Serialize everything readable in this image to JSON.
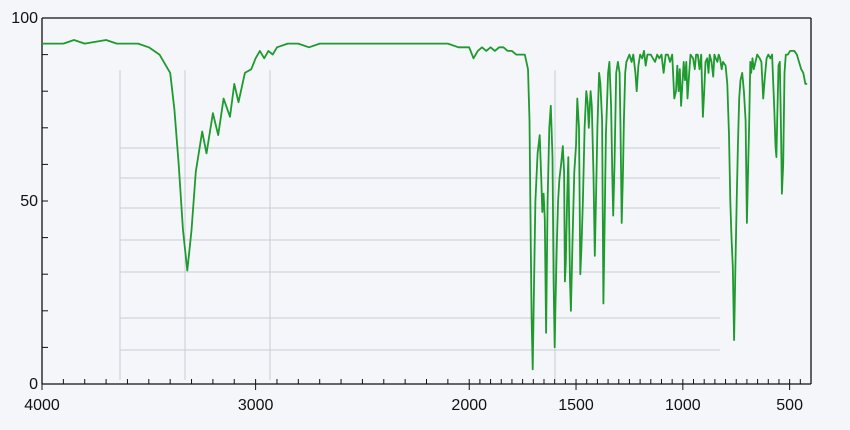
{
  "chart_data": {
    "type": "line",
    "title": "",
    "xlabel": "",
    "ylabel": "",
    "xlim": [
      4000,
      400
    ],
    "ylim": [
      0,
      100
    ],
    "x_reversed": true,
    "xticks": [
      4000,
      3000,
      2000,
      1500,
      1000,
      500
    ],
    "yticks": [
      0,
      50,
      100
    ],
    "grid": false,
    "series": [
      {
        "color": "#1e9a2e",
        "points": [
          [
            4000,
            93
          ],
          [
            3900,
            93
          ],
          [
            3850,
            94
          ],
          [
            3800,
            93
          ],
          [
            3700,
            94
          ],
          [
            3650,
            93
          ],
          [
            3550,
            93
          ],
          [
            3500,
            92
          ],
          [
            3450,
            90
          ],
          [
            3400,
            85
          ],
          [
            3380,
            75
          ],
          [
            3360,
            60
          ],
          [
            3340,
            42
          ],
          [
            3320,
            31
          ],
          [
            3300,
            42
          ],
          [
            3280,
            58
          ],
          [
            3250,
            69
          ],
          [
            3230,
            63
          ],
          [
            3200,
            74
          ],
          [
            3175,
            68
          ],
          [
            3150,
            78
          ],
          [
            3120,
            73
          ],
          [
            3100,
            82
          ],
          [
            3080,
            77
          ],
          [
            3050,
            85
          ],
          [
            3020,
            86
          ],
          [
            3000,
            89
          ],
          [
            2980,
            91
          ],
          [
            2960,
            89
          ],
          [
            2940,
            91
          ],
          [
            2920,
            90
          ],
          [
            2900,
            92
          ],
          [
            2850,
            93
          ],
          [
            2800,
            93
          ],
          [
            2750,
            92
          ],
          [
            2700,
            93
          ],
          [
            2600,
            93
          ],
          [
            2500,
            93
          ],
          [
            2400,
            93
          ],
          [
            2300,
            93
          ],
          [
            2200,
            93
          ],
          [
            2100,
            93
          ],
          [
            2050,
            92
          ],
          [
            2000,
            92
          ],
          [
            1980,
            89
          ],
          [
            1960,
            91
          ],
          [
            1940,
            92
          ],
          [
            1920,
            91
          ],
          [
            1900,
            92
          ],
          [
            1880,
            91
          ],
          [
            1860,
            92
          ],
          [
            1840,
            92
          ],
          [
            1820,
            91
          ],
          [
            1800,
            91
          ],
          [
            1780,
            90
          ],
          [
            1760,
            90
          ],
          [
            1740,
            90
          ],
          [
            1725,
            86
          ],
          [
            1718,
            72
          ],
          [
            1712,
            40
          ],
          [
            1708,
            18
          ],
          [
            1703,
            4
          ],
          [
            1697,
            25
          ],
          [
            1690,
            50
          ],
          [
            1680,
            63
          ],
          [
            1670,
            68
          ],
          [
            1662,
            55
          ],
          [
            1658,
            47
          ],
          [
            1652,
            52
          ],
          [
            1646,
            45
          ],
          [
            1640,
            14
          ],
          [
            1633,
            50
          ],
          [
            1625,
            70
          ],
          [
            1618,
            76
          ],
          [
            1610,
            62
          ],
          [
            1605,
            28
          ],
          [
            1600,
            10
          ],
          [
            1596,
            22
          ],
          [
            1590,
            38
          ],
          [
            1584,
            50
          ],
          [
            1578,
            56
          ],
          [
            1570,
            60
          ],
          [
            1562,
            65
          ],
          [
            1556,
            58
          ],
          [
            1552,
            28
          ],
          [
            1548,
            33
          ],
          [
            1542,
            50
          ],
          [
            1536,
            62
          ],
          [
            1528,
            28
          ],
          [
            1524,
            20
          ],
          [
            1516,
            40
          ],
          [
            1508,
            58
          ],
          [
            1500,
            65
          ],
          [
            1494,
            78
          ],
          [
            1486,
            70
          ],
          [
            1480,
            30
          ],
          [
            1475,
            37
          ],
          [
            1468,
            50
          ],
          [
            1460,
            70
          ],
          [
            1452,
            80
          ],
          [
            1446,
            77
          ],
          [
            1440,
            70
          ],
          [
            1432,
            80
          ],
          [
            1426,
            76
          ],
          [
            1418,
            57
          ],
          [
            1412,
            35
          ],
          [
            1406,
            52
          ],
          [
            1400,
            70
          ],
          [
            1392,
            85
          ],
          [
            1386,
            82
          ],
          [
            1378,
            72
          ],
          [
            1372,
            22
          ],
          [
            1366,
            45
          ],
          [
            1360,
            68
          ],
          [
            1350,
            85
          ],
          [
            1344,
            88
          ],
          [
            1336,
            76
          ],
          [
            1330,
            57
          ],
          [
            1326,
            46
          ],
          [
            1320,
            60
          ],
          [
            1312,
            85
          ],
          [
            1304,
            88
          ],
          [
            1296,
            85
          ],
          [
            1292,
            70
          ],
          [
            1286,
            44
          ],
          [
            1280,
            58
          ],
          [
            1276,
            72
          ],
          [
            1270,
            85
          ],
          [
            1264,
            88
          ],
          [
            1250,
            90
          ],
          [
            1240,
            88
          ],
          [
            1232,
            90
          ],
          [
            1222,
            85
          ],
          [
            1216,
            80
          ],
          [
            1208,
            87
          ],
          [
            1200,
            90
          ],
          [
            1190,
            89
          ],
          [
            1182,
            91
          ],
          [
            1174,
            87
          ],
          [
            1166,
            90
          ],
          [
            1150,
            90
          ],
          [
            1140,
            89
          ],
          [
            1130,
            88
          ],
          [
            1120,
            90
          ],
          [
            1110,
            89
          ],
          [
            1100,
            90
          ],
          [
            1090,
            85
          ],
          [
            1080,
            90
          ],
          [
            1070,
            90
          ],
          [
            1060,
            88
          ],
          [
            1050,
            90
          ],
          [
            1040,
            78
          ],
          [
            1032,
            80
          ],
          [
            1026,
            87
          ],
          [
            1020,
            80
          ],
          [
            1014,
            86
          ],
          [
            1008,
            76
          ],
          [
            1002,
            82
          ],
          [
            996,
            88
          ],
          [
            990,
            83
          ],
          [
            984,
            88
          ],
          [
            978,
            78
          ],
          [
            970,
            85
          ],
          [
            964,
            90
          ],
          [
            952,
            89
          ],
          [
            944,
            86
          ],
          [
            938,
            90
          ],
          [
            930,
            90
          ],
          [
            922,
            86
          ],
          [
            914,
            90
          ],
          [
            906,
            73
          ],
          [
            900,
            80
          ],
          [
            894,
            88
          ],
          [
            886,
            89
          ],
          [
            880,
            85
          ],
          [
            874,
            90
          ],
          [
            866,
            88
          ],
          [
            858,
            84
          ],
          [
            852,
            90
          ],
          [
            846,
            89
          ],
          [
            838,
            88
          ],
          [
            832,
            90
          ],
          [
            826,
            89
          ],
          [
            818,
            86
          ],
          [
            812,
            88
          ],
          [
            800,
            87
          ],
          [
            792,
            82
          ],
          [
            784,
            68
          ],
          [
            778,
            50
          ],
          [
            772,
            40
          ],
          [
            766,
            32
          ],
          [
            760,
            12
          ],
          [
            754,
            32
          ],
          [
            748,
            50
          ],
          [
            742,
            65
          ],
          [
            736,
            78
          ],
          [
            730,
            83
          ],
          [
            722,
            85
          ],
          [
            714,
            80
          ],
          [
            706,
            72
          ],
          [
            700,
            44
          ],
          [
            694,
            60
          ],
          [
            690,
            70
          ],
          [
            684,
            88
          ],
          [
            680,
            85
          ],
          [
            674,
            89
          ],
          [
            668,
            86
          ],
          [
            660,
            88
          ],
          [
            652,
            90
          ],
          [
            640,
            89
          ],
          [
            632,
            88
          ],
          [
            624,
            78
          ],
          [
            616,
            84
          ],
          [
            608,
            89
          ],
          [
            600,
            90
          ],
          [
            590,
            89
          ],
          [
            582,
            90
          ],
          [
            572,
            75
          ],
          [
            566,
            65
          ],
          [
            562,
            62
          ],
          [
            558,
            72
          ],
          [
            552,
            87
          ],
          [
            546,
            88
          ],
          [
            540,
            68
          ],
          [
            536,
            52
          ],
          [
            530,
            60
          ],
          [
            524,
            85
          ],
          [
            518,
            90
          ],
          [
            508,
            90
          ],
          [
            498,
            91
          ],
          [
            488,
            91
          ],
          [
            478,
            91
          ],
          [
            466,
            90
          ],
          [
            456,
            88
          ],
          [
            446,
            86
          ],
          [
            436,
            85
          ],
          [
            426,
            82
          ],
          [
            418,
            82
          ]
        ]
      }
    ]
  }
}
